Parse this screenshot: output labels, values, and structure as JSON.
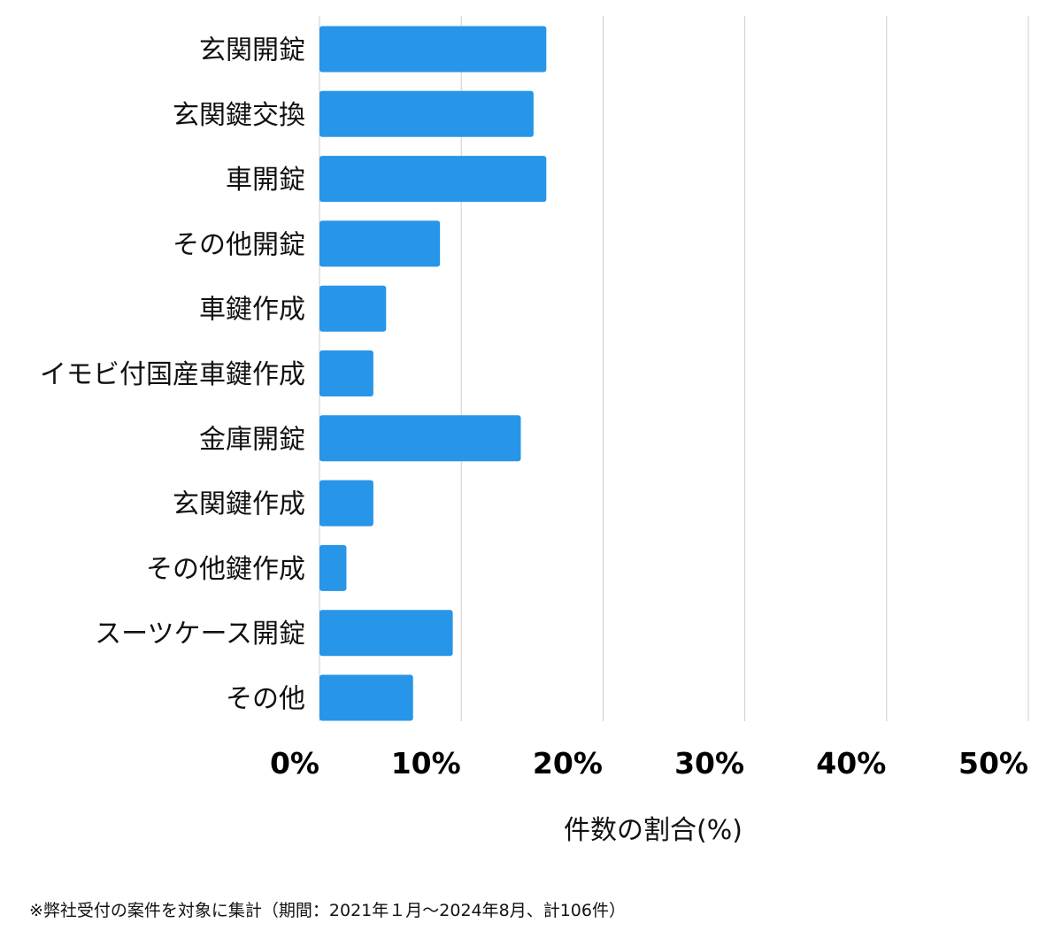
{
  "chart_data": {
    "type": "bar",
    "orientation": "horizontal",
    "categories": [
      "玄関開錠",
      "玄関鍵交換",
      "車開錠",
      "その他開錠",
      "車鍵作成",
      "イモビ付国産車鍵作成",
      "金庫開錠",
      "玄関鍵作成",
      "その他鍵作成",
      "スーツケース開錠",
      "その他"
    ],
    "values": [
      16.0,
      15.1,
      16.0,
      8.5,
      4.7,
      3.8,
      14.2,
      3.8,
      1.9,
      9.4,
      6.6
    ],
    "xlim": [
      0,
      50
    ],
    "xticks": [
      0,
      10,
      20,
      30,
      40,
      50
    ],
    "xtick_labels": [
      "0%",
      "10%",
      "20%",
      "30%",
      "40%",
      "50%"
    ],
    "xlabel": "件数の割合(%)",
    "ylabel": "",
    "title": "",
    "grid": "vertical",
    "bar_color": "#2795e8"
  },
  "footnote": "※弊社受付の案件を対象に集計（期間：2021年１月～2024年8月、計106件）"
}
